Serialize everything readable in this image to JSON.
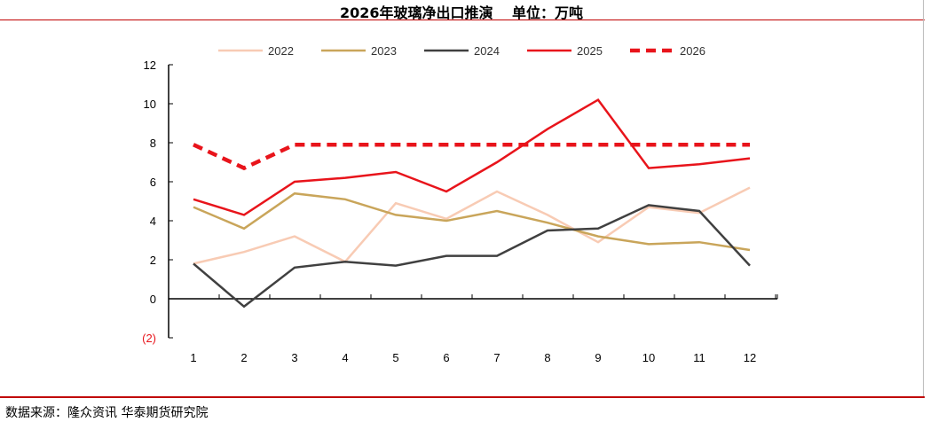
{
  "title": "2026年玻璃净出口推演　 单位：万吨",
  "source": "数据来源：隆众资讯 华泰期货研究院",
  "chart_data": {
    "type": "line",
    "title": "2026年玻璃净出口推演　 单位：万吨",
    "categories": [
      "1",
      "2",
      "3",
      "4",
      "5",
      "6",
      "7",
      "8",
      "9",
      "10",
      "11",
      "12"
    ],
    "ylim": [
      -2,
      12
    ],
    "yticks": [
      -2,
      0,
      2,
      4,
      6,
      8,
      10,
      12
    ],
    "ytick_labels": [
      "(2)",
      "0",
      "2",
      "4",
      "6",
      "8",
      "10",
      "12"
    ],
    "grid": false,
    "legend": "top",
    "series": [
      {
        "name": "2022",
        "color": "#f8cbb4",
        "dash": false,
        "values": [
          1.8,
          2.4,
          3.2,
          1.9,
          4.9,
          4.1,
          5.5,
          4.3,
          2.9,
          4.7,
          4.4,
          5.7
        ]
      },
      {
        "name": "2023",
        "color": "#c9a55a",
        "dash": false,
        "values": [
          4.7,
          3.6,
          5.4,
          5.1,
          4.3,
          4.0,
          4.5,
          3.9,
          3.2,
          2.8,
          2.9,
          2.5
        ]
      },
      {
        "name": "2024",
        "color": "#404040",
        "dash": false,
        "values": [
          1.8,
          -0.4,
          1.6,
          1.9,
          1.7,
          2.2,
          2.2,
          3.5,
          3.6,
          4.8,
          4.5,
          1.7
        ]
      },
      {
        "name": "2025",
        "color": "#e8141b",
        "dash": false,
        "values": [
          5.1,
          4.3,
          6.0,
          6.2,
          6.5,
          5.5,
          7.0,
          8.7,
          10.2,
          6.7,
          6.9,
          7.2
        ]
      },
      {
        "name": "2026",
        "color": "#e8141b",
        "dash": true,
        "values": [
          7.9,
          6.7,
          7.9,
          7.9,
          7.9,
          7.9,
          7.9,
          7.9,
          7.9,
          7.9,
          7.9,
          7.9
        ]
      }
    ]
  }
}
